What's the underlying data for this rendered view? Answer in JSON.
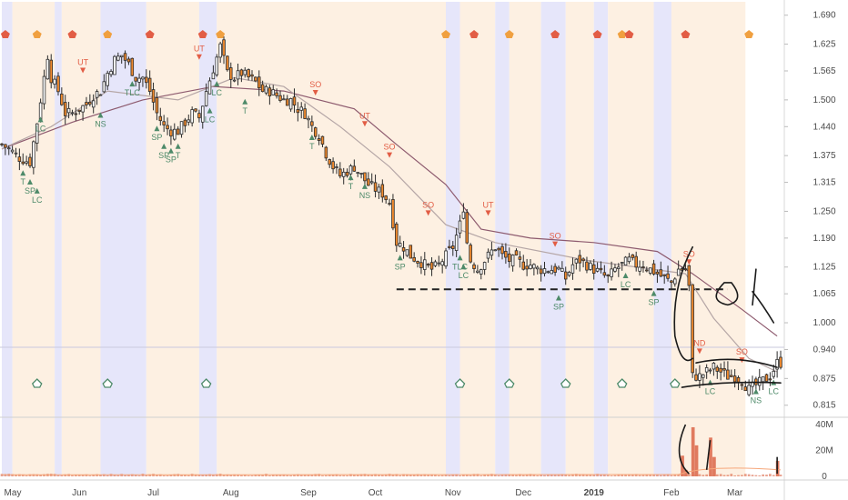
{
  "chart_data": {
    "type": "candlestick",
    "price_axis": {
      "ylim": [
        0.79,
        1.72
      ],
      "ticks": [
        "1.690",
        "1.625",
        "1.565",
        "1.500",
        "1.440",
        "1.375",
        "1.315",
        "1.250",
        "1.190",
        "1.125",
        "1.065",
        "1.000",
        "0.940",
        "0.875",
        "0.815"
      ]
    },
    "volume_axis": {
      "ylim": [
        0,
        45000000
      ],
      "ticks": [
        "40M",
        "20M",
        "0"
      ]
    },
    "months": [
      {
        "label": "May",
        "day": 0
      },
      {
        "label": "Jun",
        "day": 22
      },
      {
        "label": "Jul",
        "day": 43
      },
      {
        "label": "Aug",
        "day": 65
      },
      {
        "label": "Sep",
        "day": 87
      },
      {
        "label": "Oct",
        "day": 106
      },
      {
        "label": "Nov",
        "day": 128
      },
      {
        "label": "Dec",
        "day": 148
      },
      {
        "label": "2019",
        "day": 168
      },
      {
        "label": "Feb",
        "day": 190
      },
      {
        "label": "Mar",
        "day": 208
      }
    ],
    "day_range": [
      0,
      221
    ],
    "close_keypoints": [
      [
        0,
        1.4
      ],
      [
        2,
        1.39
      ],
      [
        5,
        1.37
      ],
      [
        8,
        1.36
      ],
      [
        10,
        1.45
      ],
      [
        12,
        1.55
      ],
      [
        13,
        1.6
      ],
      [
        14,
        1.55
      ],
      [
        16,
        1.52
      ],
      [
        18,
        1.47
      ],
      [
        20,
        1.47
      ],
      [
        22,
        1.48
      ],
      [
        24,
        1.49
      ],
      [
        26,
        1.51
      ],
      [
        28,
        1.52
      ],
      [
        30,
        1.56
      ],
      [
        32,
        1.59
      ],
      [
        34,
        1.6
      ],
      [
        36,
        1.58
      ],
      [
        38,
        1.55
      ],
      [
        40,
        1.55
      ],
      [
        42,
        1.52
      ],
      [
        44,
        1.47
      ],
      [
        46,
        1.44
      ],
      [
        48,
        1.43
      ],
      [
        50,
        1.43
      ],
      [
        52,
        1.45
      ],
      [
        54,
        1.47
      ],
      [
        56,
        1.46
      ],
      [
        58,
        1.52
      ],
      [
        60,
        1.57
      ],
      [
        62,
        1.62
      ],
      [
        64,
        1.56
      ],
      [
        66,
        1.55
      ],
      [
        68,
        1.56
      ],
      [
        70,
        1.55
      ],
      [
        72,
        1.54
      ],
      [
        74,
        1.52
      ],
      [
        76,
        1.52
      ],
      [
        78,
        1.51
      ],
      [
        80,
        1.5
      ],
      [
        82,
        1.5
      ],
      [
        84,
        1.48
      ],
      [
        86,
        1.47
      ],
      [
        88,
        1.44
      ],
      [
        90,
        1.42
      ],
      [
        92,
        1.38
      ],
      [
        94,
        1.35
      ],
      [
        96,
        1.33
      ],
      [
        98,
        1.34
      ],
      [
        100,
        1.35
      ],
      [
        102,
        1.33
      ],
      [
        104,
        1.31
      ],
      [
        106,
        1.3
      ],
      [
        108,
        1.29
      ],
      [
        110,
        1.27
      ],
      [
        112,
        1.18
      ],
      [
        114,
        1.17
      ],
      [
        116,
        1.15
      ],
      [
        118,
        1.14
      ],
      [
        120,
        1.13
      ],
      [
        122,
        1.12
      ],
      [
        124,
        1.13
      ],
      [
        126,
        1.15
      ],
      [
        128,
        1.17
      ],
      [
        130,
        1.22
      ],
      [
        131,
        1.26
      ],
      [
        132,
        1.18
      ],
      [
        133,
        1.14
      ],
      [
        135,
        1.12
      ],
      [
        138,
        1.15
      ],
      [
        140,
        1.17
      ],
      [
        142,
        1.15
      ],
      [
        144,
        1.14
      ],
      [
        146,
        1.14
      ],
      [
        148,
        1.13
      ],
      [
        150,
        1.13
      ],
      [
        152,
        1.12
      ],
      [
        154,
        1.12
      ],
      [
        156,
        1.12
      ],
      [
        158,
        1.12
      ],
      [
        160,
        1.1
      ],
      [
        162,
        1.13
      ],
      [
        164,
        1.14
      ],
      [
        166,
        1.13
      ],
      [
        168,
        1.12
      ],
      [
        170,
        1.11
      ],
      [
        172,
        1.1
      ],
      [
        174,
        1.12
      ],
      [
        176,
        1.13
      ],
      [
        178,
        1.14
      ],
      [
        180,
        1.13
      ],
      [
        182,
        1.13
      ],
      [
        184,
        1.12
      ],
      [
        186,
        1.11
      ],
      [
        188,
        1.1
      ],
      [
        190,
        1.09
      ],
      [
        192,
        1.12
      ],
      [
        194,
        1.12
      ],
      [
        195,
        1.08
      ],
      [
        196,
        0.88
      ],
      [
        198,
        0.88
      ],
      [
        200,
        0.89
      ],
      [
        202,
        0.9
      ],
      [
        204,
        0.89
      ],
      [
        206,
        0.88
      ],
      [
        208,
        0.88
      ],
      [
        210,
        0.87
      ],
      [
        212,
        0.85
      ],
      [
        214,
        0.86
      ],
      [
        216,
        0.87
      ],
      [
        218,
        0.88
      ],
      [
        220,
        0.91
      ]
    ],
    "moving_averages": [
      {
        "color": "#8d5a6e",
        "points": [
          [
            0,
            1.39
          ],
          [
            20,
            1.45
          ],
          [
            40,
            1.5
          ],
          [
            60,
            1.53
          ],
          [
            80,
            1.52
          ],
          [
            100,
            1.48
          ],
          [
            112,
            1.4
          ],
          [
            126,
            1.31
          ],
          [
            136,
            1.21
          ],
          [
            150,
            1.19
          ],
          [
            168,
            1.18
          ],
          [
            186,
            1.16
          ],
          [
            196,
            1.11
          ],
          [
            210,
            1.03
          ],
          [
            220,
            0.97
          ]
        ]
      },
      {
        "color": "#b5a6a6",
        "points": [
          [
            0,
            1.39
          ],
          [
            14,
            1.44
          ],
          [
            30,
            1.52
          ],
          [
            50,
            1.5
          ],
          [
            66,
            1.55
          ],
          [
            80,
            1.53
          ],
          [
            96,
            1.44
          ],
          [
            110,
            1.35
          ],
          [
            126,
            1.22
          ],
          [
            140,
            1.18
          ],
          [
            166,
            1.14
          ],
          [
            194,
            1.11
          ],
          [
            202,
            1.01
          ],
          [
            212,
            0.92
          ],
          [
            220,
            0.89
          ]
        ]
      }
    ],
    "vertical_bands": [
      {
        "from": 0,
        "to": 3,
        "color": "#e6e6fa"
      },
      {
        "from": 3,
        "to": 15,
        "color": "#fdf0e2"
      },
      {
        "from": 15,
        "to": 17,
        "color": "#e6e6fa"
      },
      {
        "from": 17,
        "to": 28,
        "color": "#fdf0e2"
      },
      {
        "from": 28,
        "to": 41,
        "color": "#e6e6fa"
      },
      {
        "from": 41,
        "to": 56,
        "color": "#fdf0e2"
      },
      {
        "from": 56,
        "to": 61,
        "color": "#e6e6fa"
      },
      {
        "from": 61,
        "to": 126,
        "color": "#fdf0e2"
      },
      {
        "from": 126,
        "to": 130,
        "color": "#e6e6fa"
      },
      {
        "from": 130,
        "to": 140,
        "color": "#fdf0e2"
      },
      {
        "from": 140,
        "to": 144,
        "color": "#e6e6fa"
      },
      {
        "from": 144,
        "to": 153,
        "color": "#fdf0e2"
      },
      {
        "from": 153,
        "to": 160,
        "color": "#e6e6fa"
      },
      {
        "from": 160,
        "to": 168,
        "color": "#fdf0e2"
      },
      {
        "from": 168,
        "to": 172,
        "color": "#e6e6fa"
      },
      {
        "from": 172,
        "to": 185,
        "color": "#fdf0e2"
      },
      {
        "from": 185,
        "to": 190,
        "color": "#e6e6fa"
      },
      {
        "from": 190,
        "to": 211,
        "color": "#fdf0e2"
      }
    ],
    "support_line": {
      "from": 112,
      "to": 206,
      "price": 1.075
    },
    "reference_line": {
      "price": 0.945
    },
    "signals": [
      {
        "label": "LC",
        "day": 11,
        "price": 1.45,
        "position": "below",
        "color": "#4d8a69"
      },
      {
        "label": "T",
        "day": 6,
        "price": 1.33,
        "position": "below",
        "color": "#4d8a69"
      },
      {
        "label": "SP",
        "day": 8,
        "price": 1.31,
        "position": "below",
        "color": "#4d8a69"
      },
      {
        "label": "LC",
        "day": 10,
        "price": 1.29,
        "position": "below",
        "color": "#4d8a69"
      },
      {
        "label": "UT",
        "day": 23,
        "price": 1.56,
        "position": "above",
        "color": "#e25d45"
      },
      {
        "label": "NS",
        "day": 28,
        "price": 1.46,
        "position": "below",
        "color": "#4d8a69"
      },
      {
        "label": "TLC",
        "day": 37,
        "price": 1.53,
        "position": "below",
        "color": "#4d8a69"
      },
      {
        "label": "SP",
        "day": 44,
        "price": 1.43,
        "position": "below",
        "color": "#4d8a69"
      },
      {
        "label": "SP",
        "day": 46,
        "price": 1.39,
        "position": "below",
        "color": "#4d8a69"
      },
      {
        "label": "SP",
        "day": 48,
        "price": 1.38,
        "position": "below",
        "color": "#4d8a69"
      },
      {
        "label": "T",
        "day": 50,
        "price": 1.39,
        "position": "below",
        "color": "#4d8a69"
      },
      {
        "label": "UT",
        "day": 56,
        "price": 1.59,
        "position": "above",
        "color": "#e25d45"
      },
      {
        "label": "LC",
        "day": 59,
        "price": 1.47,
        "position": "below",
        "color": "#4d8a69"
      },
      {
        "label": "LC",
        "day": 61,
        "price": 1.53,
        "position": "below",
        "color": "#4d8a69"
      },
      {
        "label": "T",
        "day": 69,
        "price": 1.49,
        "position": "below",
        "color": "#4d8a69"
      },
      {
        "label": "SO",
        "day": 89,
        "price": 1.51,
        "position": "above",
        "color": "#e25d45"
      },
      {
        "label": "T",
        "day": 88,
        "price": 1.41,
        "position": "below",
        "color": "#4d8a69"
      },
      {
        "label": "UT",
        "day": 103,
        "price": 1.44,
        "position": "above",
        "color": "#e25d45"
      },
      {
        "label": "T",
        "day": 99,
        "price": 1.32,
        "position": "below",
        "color": "#4d8a69"
      },
      {
        "label": "NS",
        "day": 103,
        "price": 1.3,
        "position": "below",
        "color": "#4d8a69"
      },
      {
        "label": "SO",
        "day": 110,
        "price": 1.37,
        "position": "above",
        "color": "#e25d45"
      },
      {
        "label": "SP",
        "day": 113,
        "price": 1.14,
        "position": "below",
        "color": "#4d8a69"
      },
      {
        "label": "SO",
        "day": 121,
        "price": 1.24,
        "position": "above",
        "color": "#e25d45"
      },
      {
        "label": "TLC",
        "day": 130,
        "price": 1.14,
        "position": "below",
        "color": "#4d8a69"
      },
      {
        "label": "LC",
        "day": 131,
        "price": 1.12,
        "position": "below",
        "color": "#4d8a69"
      },
      {
        "label": "UT",
        "day": 138,
        "price": 1.24,
        "position": "above",
        "color": "#e25d45"
      },
      {
        "label": "SP",
        "day": 158,
        "price": 1.05,
        "position": "below",
        "color": "#4d8a69"
      },
      {
        "label": "SO",
        "day": 157,
        "price": 1.17,
        "position": "above",
        "color": "#e25d45"
      },
      {
        "label": "LC",
        "day": 177,
        "price": 1.1,
        "position": "below",
        "color": "#4d8a69"
      },
      {
        "label": "SP",
        "day": 185,
        "price": 1.06,
        "position": "below",
        "color": "#4d8a69"
      },
      {
        "label": "SO",
        "day": 195,
        "price": 1.13,
        "position": "above",
        "color": "#e25d45"
      },
      {
        "label": "ND",
        "day": 198,
        "price": 0.93,
        "position": "above",
        "color": "#e25d45"
      },
      {
        "label": "LC",
        "day": 201,
        "price": 0.86,
        "position": "below",
        "color": "#4d8a69"
      },
      {
        "label": "SO",
        "day": 210,
        "price": 0.91,
        "position": "above",
        "color": "#e25d45"
      },
      {
        "label": "NS",
        "day": 214,
        "price": 0.84,
        "position": "below",
        "color": "#4d8a69"
      },
      {
        "label": "LC",
        "day": 219,
        "price": 0.86,
        "position": "below",
        "color": "#4d8a69"
      }
    ],
    "top_markers": [
      {
        "day": 1,
        "color": "#e25d45"
      },
      {
        "day": 10,
        "color": "#f0a040"
      },
      {
        "day": 20,
        "color": "#e25d45"
      },
      {
        "day": 30,
        "color": "#f0a040"
      },
      {
        "day": 42,
        "color": "#e25d45"
      },
      {
        "day": 57,
        "color": "#e25d45"
      },
      {
        "day": 62,
        "color": "#f0a040"
      },
      {
        "day": 126,
        "color": "#f0a040"
      },
      {
        "day": 134,
        "color": "#e25d45"
      },
      {
        "day": 144,
        "color": "#f0a040"
      },
      {
        "day": 157,
        "color": "#e25d45"
      },
      {
        "day": 169,
        "color": "#e25d45"
      },
      {
        "day": 176,
        "color": "#f0a040"
      },
      {
        "day": 178,
        "color": "#e25d45"
      },
      {
        "day": 194,
        "color": "#e25d45"
      },
      {
        "day": 212,
        "color": "#f0a040"
      }
    ],
    "bottom_markers": [
      {
        "day": 10
      },
      {
        "day": 30
      },
      {
        "day": 58
      },
      {
        "day": 130
      },
      {
        "day": 144
      },
      {
        "day": 160
      },
      {
        "day": 176
      },
      {
        "day": 191
      }
    ],
    "volume_highlights": [
      {
        "day": 193,
        "value": 16000000
      },
      {
        "day": 194,
        "value": 5000000
      },
      {
        "day": 196,
        "value": 38000000
      },
      {
        "day": 197,
        "value": 24000000
      },
      {
        "day": 201,
        "value": 30000000
      },
      {
        "day": 202,
        "value": 15000000
      },
      {
        "day": 220,
        "value": 12000000
      }
    ],
    "colors": {
      "up": "#ffffff",
      "down": "#f08a2e",
      "wick": "#2b2b2b",
      "signal_green": "#4d8a69",
      "signal_red": "#e25d45",
      "support_line": "#222222",
      "hand_drawing": "#1a1a1a",
      "reference_line": "#c9c9dd",
      "volume": "#e07a5f",
      "volume_ma": "#f6a77b"
    }
  }
}
